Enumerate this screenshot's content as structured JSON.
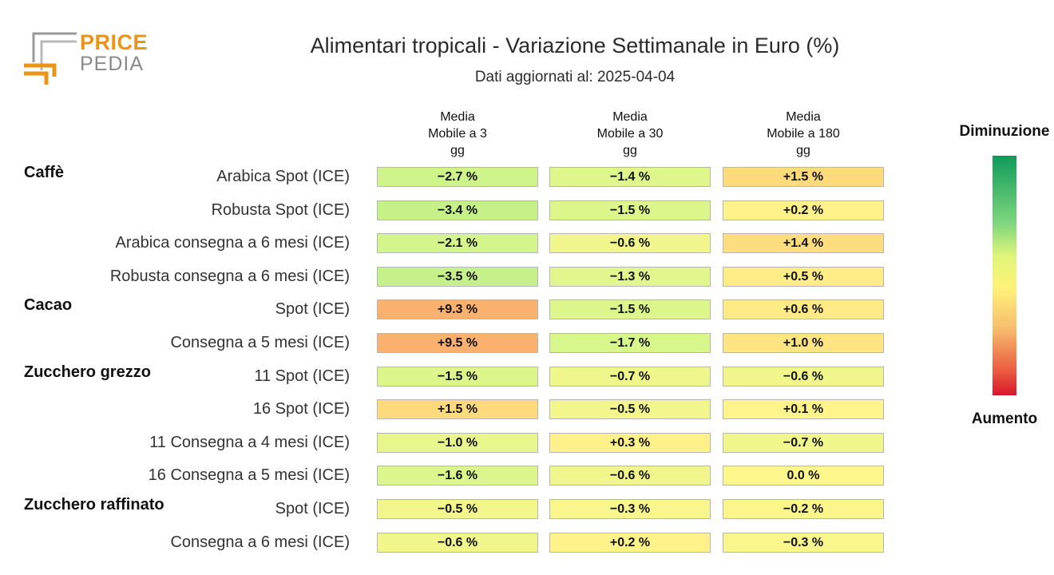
{
  "logo": {
    "line1": "PRICE",
    "line2": "PEDIA"
  },
  "title": "Alimentari tropicali - Variazione Settimanale in Euro (%)",
  "subtitle": "Dati aggiornati al: 2025-04-04",
  "legend": {
    "top": "Diminuzione",
    "bottom": "Aumento"
  },
  "colors": {
    "decrease_strong": "#0f9a5a",
    "neutral": "#fff27a",
    "increase_strong": "#d8172a"
  },
  "chart_data": {
    "type": "heatmap",
    "title": "Alimentari tropicali - Variazione Settimanale in Euro (%)",
    "columns": [
      "Media\nMobile a 3\ngg",
      "Media\nMobile a 30\ngg",
      "Media\nMobile a 180\ngg"
    ],
    "rows": [
      {
        "group": "Caffè",
        "label": "Arabica Spot (ICE)",
        "values": [
          "−2.7 %",
          "−1.4 %",
          "+1.5 %"
        ],
        "nums": [
          -2.7,
          -1.4,
          1.5
        ]
      },
      {
        "group": "",
        "label": "Robusta Spot (ICE)",
        "values": [
          "−3.4 %",
          "−1.5 %",
          "+0.2 %"
        ],
        "nums": [
          -3.4,
          -1.5,
          0.2
        ]
      },
      {
        "group": "",
        "label": "Arabica consegna a 6 mesi (ICE)",
        "values": [
          "−2.1 %",
          "−0.6 %",
          "+1.4 %"
        ],
        "nums": [
          -2.1,
          -0.6,
          1.4
        ]
      },
      {
        "group": "",
        "label": "Robusta consegna a 6 mesi (ICE)",
        "values": [
          "−3.5 %",
          "−1.3 %",
          "+0.5 %"
        ],
        "nums": [
          -3.5,
          -1.3,
          0.5
        ]
      },
      {
        "group": "Cacao",
        "label": "Spot (ICE)",
        "values": [
          "+9.3 %",
          "−1.5 %",
          "+0.6 %"
        ],
        "nums": [
          9.3,
          -1.5,
          0.6
        ]
      },
      {
        "group": "",
        "label": "Consegna a 5 mesi (ICE)",
        "values": [
          "+9.5 %",
          "−1.7 %",
          "+1.0 %"
        ],
        "nums": [
          9.5,
          -1.7,
          1.0
        ]
      },
      {
        "group": "Zucchero grezzo",
        "label": "11 Spot (ICE)",
        "values": [
          "−1.5 %",
          "−0.7 %",
          "−0.6 %"
        ],
        "nums": [
          -1.5,
          -0.7,
          -0.6
        ]
      },
      {
        "group": "",
        "label": "16 Spot (ICE)",
        "values": [
          "+1.5 %",
          "−0.5 %",
          "+0.1 %"
        ],
        "nums": [
          1.5,
          -0.5,
          0.1
        ]
      },
      {
        "group": "",
        "label": "11 Consegna a 4 mesi (ICE)",
        "values": [
          "−1.0 %",
          "+0.3 %",
          "−0.7 %"
        ],
        "nums": [
          -1.0,
          0.3,
          -0.7
        ]
      },
      {
        "group": "",
        "label": "16 Consegna a 5 mesi (ICE)",
        "values": [
          "−1.6 %",
          "−0.6 %",
          "0.0 %"
        ],
        "nums": [
          -1.6,
          -0.6,
          0.0
        ]
      },
      {
        "group": "Zucchero raffinato",
        "label": "Spot (ICE)",
        "values": [
          "−0.5 %",
          "−0.3 %",
          "−0.2 %"
        ],
        "nums": [
          -0.5,
          -0.3,
          -0.2
        ]
      },
      {
        "group": "",
        "label": "Consegna a 6 mesi (ICE)",
        "values": [
          "−0.6 %",
          "+0.2 %",
          "−0.3 %"
        ],
        "nums": [
          -0.6,
          0.2,
          -0.3
        ]
      }
    ]
  }
}
